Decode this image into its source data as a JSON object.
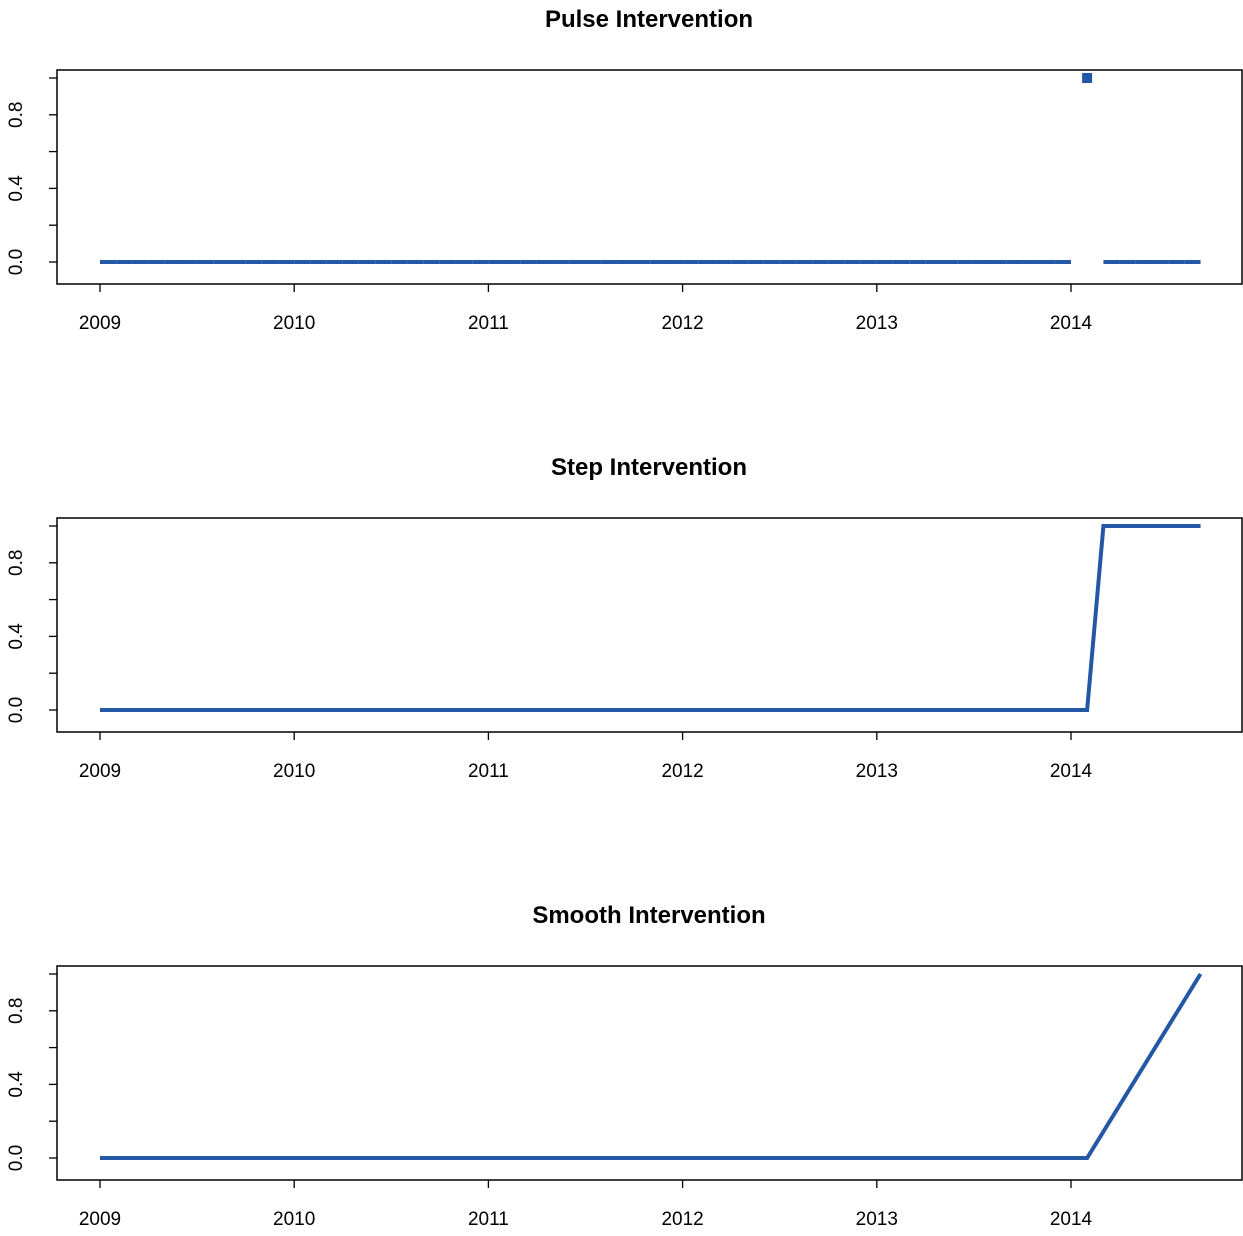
{
  "chart_data": [
    {
      "type": "line",
      "title": "Pulse Intervention",
      "xlabel": "",
      "ylabel": "",
      "xlim": [
        2008.78,
        2014.86
      ],
      "ylim": [
        0,
        1
      ],
      "x_ticks": [
        "2009",
        "2010",
        "2011",
        "2012",
        "2013",
        "2014"
      ],
      "y_ticks": [
        "0.0",
        "0.4",
        "0.8"
      ],
      "grid": false,
      "legend": "none",
      "series": [
        {
          "color": "#2458a6",
          "x": [
            2009.0,
            2009.083,
            2009.167,
            2009.25,
            2009.333,
            2009.417,
            2009.5,
            2009.583,
            2009.667,
            2009.75,
            2009.833,
            2009.917,
            2010.0,
            2010.083,
            2010.167,
            2010.25,
            2010.333,
            2010.417,
            2010.5,
            2010.583,
            2010.667,
            2010.75,
            2010.833,
            2010.917,
            2011.0,
            2011.083,
            2011.167,
            2011.25,
            2011.333,
            2011.417,
            2011.5,
            2011.583,
            2011.667,
            2011.75,
            2011.833,
            2011.917,
            2012.0,
            2012.083,
            2012.167,
            2012.25,
            2012.333,
            2012.417,
            2012.5,
            2012.583,
            2012.667,
            2012.75,
            2012.833,
            2012.917,
            2013.0,
            2013.083,
            2013.167,
            2013.25,
            2013.333,
            2013.417,
            2013.5,
            2013.583,
            2013.667,
            2013.75,
            2013.833,
            2013.917,
            2014.0,
            2014.083,
            2014.167,
            2014.25,
            2014.333,
            2014.417,
            2014.5,
            2014.583,
            2014.667
          ],
          "y": [
            0,
            0,
            0,
            0,
            0,
            0,
            0,
            0,
            0,
            0,
            0,
            0,
            0,
            0,
            0,
            0,
            0,
            0,
            0,
            0,
            0,
            0,
            0,
            0,
            0,
            0,
            0,
            0,
            0,
            0,
            0,
            0,
            0,
            0,
            0,
            0,
            0,
            0,
            0,
            0,
            0,
            0,
            0,
            0,
            0,
            0,
            0,
            0,
            0,
            0,
            0,
            0,
            0,
            0,
            0,
            0,
            0,
            0,
            0,
            0,
            0,
            1,
            0,
            0,
            0,
            0,
            0,
            0,
            0
          ]
        }
      ]
    },
    {
      "type": "line",
      "title": "Step Intervention",
      "xlabel": "",
      "ylabel": "",
      "xlim": [
        2008.78,
        2014.86
      ],
      "ylim": [
        0,
        1
      ],
      "x_ticks": [
        "2009",
        "2010",
        "2011",
        "2012",
        "2013",
        "2014"
      ],
      "y_ticks": [
        "0.0",
        "0.4",
        "0.8"
      ],
      "grid": false,
      "legend": "none",
      "series": [
        {
          "color": "#2458a6",
          "x": [
            2009.0,
            2014.083,
            2014.167,
            2014.667
          ],
          "y": [
            0,
            0,
            1,
            1
          ]
        }
      ]
    },
    {
      "type": "line",
      "title": "Smooth Intervention",
      "xlabel": "",
      "ylabel": "",
      "xlim": [
        2008.78,
        2014.86
      ],
      "ylim": [
        0,
        1
      ],
      "x_ticks": [
        "2009",
        "2010",
        "2011",
        "2012",
        "2013",
        "2014"
      ],
      "y_ticks": [
        "0.0",
        "0.4",
        "0.8"
      ],
      "grid": false,
      "legend": "none",
      "series": [
        {
          "color": "#2458a6",
          "x": [
            2009.0,
            2014.083,
            2014.667
          ],
          "y": [
            0,
            0,
            1
          ]
        }
      ]
    }
  ]
}
